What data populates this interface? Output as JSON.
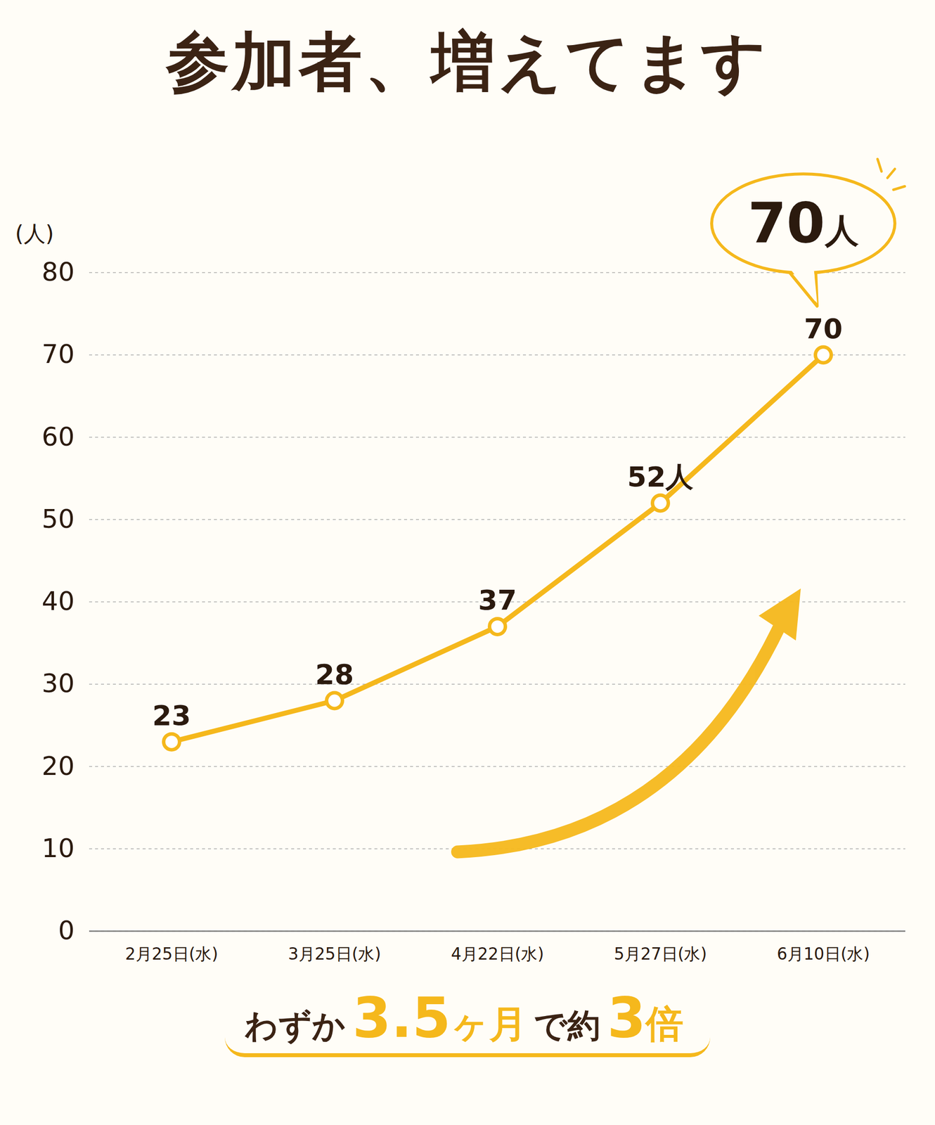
{
  "chart_data": {
    "type": "line",
    "title": "参加者、増えてます",
    "y_label": "(人)",
    "categories": [
      "2月25日(水)",
      "3月25日(水)",
      "4月22日(水)",
      "5月27日(水)",
      "6月10日(水)"
    ],
    "values": [
      23,
      28,
      37,
      52,
      70
    ],
    "value_labels": [
      "23",
      "28",
      "37",
      "52人",
      "70"
    ],
    "color": "#f5b81c",
    "marker": "circle",
    "ylim": [
      0,
      80
    ],
    "yticks": [
      0,
      10,
      20,
      30,
      40,
      50,
      60,
      70,
      80
    ],
    "grid": true,
    "data_labels": true,
    "annotations": [
      {
        "text": "70人",
        "category": "6月10日(水)"
      }
    ],
    "caption": "わずか3.5ヶ月で約3倍"
  }
}
